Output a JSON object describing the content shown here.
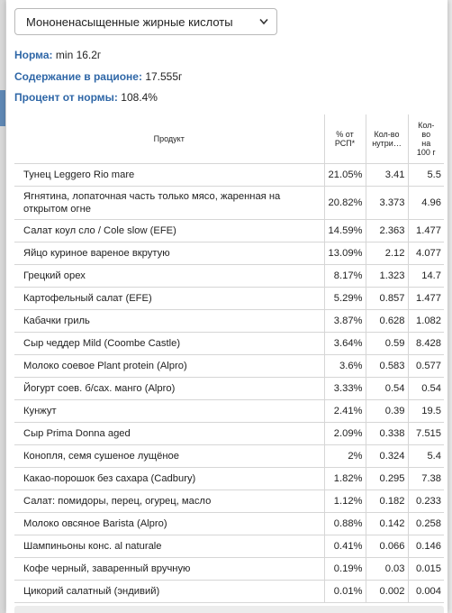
{
  "select": {
    "value": "Мононенасыщенные жирные кислоты"
  },
  "info": {
    "norm_label": "Норма:",
    "norm_value": "min 16.2г",
    "content_label": "Содержание в рационе:",
    "content_value": "17.555г",
    "percent_label": "Процент от нормы:",
    "percent_value": "108.4%"
  },
  "table": {
    "headers": {
      "product": "Продукт",
      "pct": [
        "% от",
        "РСП*"
      ],
      "qty": [
        "Кол-во",
        "нутри…"
      ],
      "qty100": [
        "Кол-",
        "во",
        "на",
        "100 г"
      ]
    },
    "rows": [
      {
        "product": "Тунец Leggero Rio mare",
        "pct": "21.05%",
        "qty": "3.41",
        "qty100": "5.5"
      },
      {
        "product": "Ягнятина, лопаточная часть только мясо, жаренная на открытом огне",
        "pct": "20.82%",
        "qty": "3.373",
        "qty100": "4.96"
      },
      {
        "product": "Салат коул сло / Cole slow (EFE)",
        "pct": "14.59%",
        "qty": "2.363",
        "qty100": "1.477"
      },
      {
        "product": "Яйцо куриное вареное вкрутую",
        "pct": "13.09%",
        "qty": "2.12",
        "qty100": "4.077"
      },
      {
        "product": "Грецкий орех",
        "pct": "8.17%",
        "qty": "1.323",
        "qty100": "14.7"
      },
      {
        "product": "Картофельный салат (EFE)",
        "pct": "5.29%",
        "qty": "0.857",
        "qty100": "1.477"
      },
      {
        "product": "Кабачки гриль",
        "pct": "3.87%",
        "qty": "0.628",
        "qty100": "1.082"
      },
      {
        "product": "Сыр чеддер Mild (Coombe Castle)",
        "pct": "3.64%",
        "qty": "0.59",
        "qty100": "8.428"
      },
      {
        "product": "Молоко соевое Plant protein (Alpro)",
        "pct": "3.6%",
        "qty": "0.583",
        "qty100": "0.577"
      },
      {
        "product": "Йогурт соев. б/сах. манго (Alpro)",
        "pct": "3.33%",
        "qty": "0.54",
        "qty100": "0.54"
      },
      {
        "product": "Кунжут",
        "pct": "2.41%",
        "qty": "0.39",
        "qty100": "19.5"
      },
      {
        "product": "Сыр Prima Donna aged",
        "pct": "2.09%",
        "qty": "0.338",
        "qty100": "7.515"
      },
      {
        "product": "Конопля, семя сушеное лущёное",
        "pct": "2%",
        "qty": "0.324",
        "qty100": "5.4"
      },
      {
        "product": "Какао-порошок без сахара (Cadbury)",
        "pct": "1.82%",
        "qty": "0.295",
        "qty100": "7.38"
      },
      {
        "product": "Салат: помидоры, перец, огурец, масло",
        "pct": "1.12%",
        "qty": "0.182",
        "qty100": "0.233"
      },
      {
        "product": "Молоко овсяное Barista (Alpro)",
        "pct": "0.88%",
        "qty": "0.142",
        "qty100": "0.258"
      },
      {
        "product": "Шампиньоны конс. al naturale",
        "pct": "0.41%",
        "qty": "0.066",
        "qty100": "0.146"
      },
      {
        "product": "Кофе черный, заваренный вручную",
        "pct": "0.19%",
        "qty": "0.03",
        "qty100": "0.015"
      },
      {
        "product": "Цикорий салатный (эндивий)",
        "pct": "0.01%",
        "qty": "0.002",
        "qty100": "0.004"
      }
    ]
  },
  "icons": {
    "select_chevron": "chevron-down-icon"
  },
  "colors": {
    "label_blue": "#2f67a7",
    "border": "#d6d6d6"
  }
}
